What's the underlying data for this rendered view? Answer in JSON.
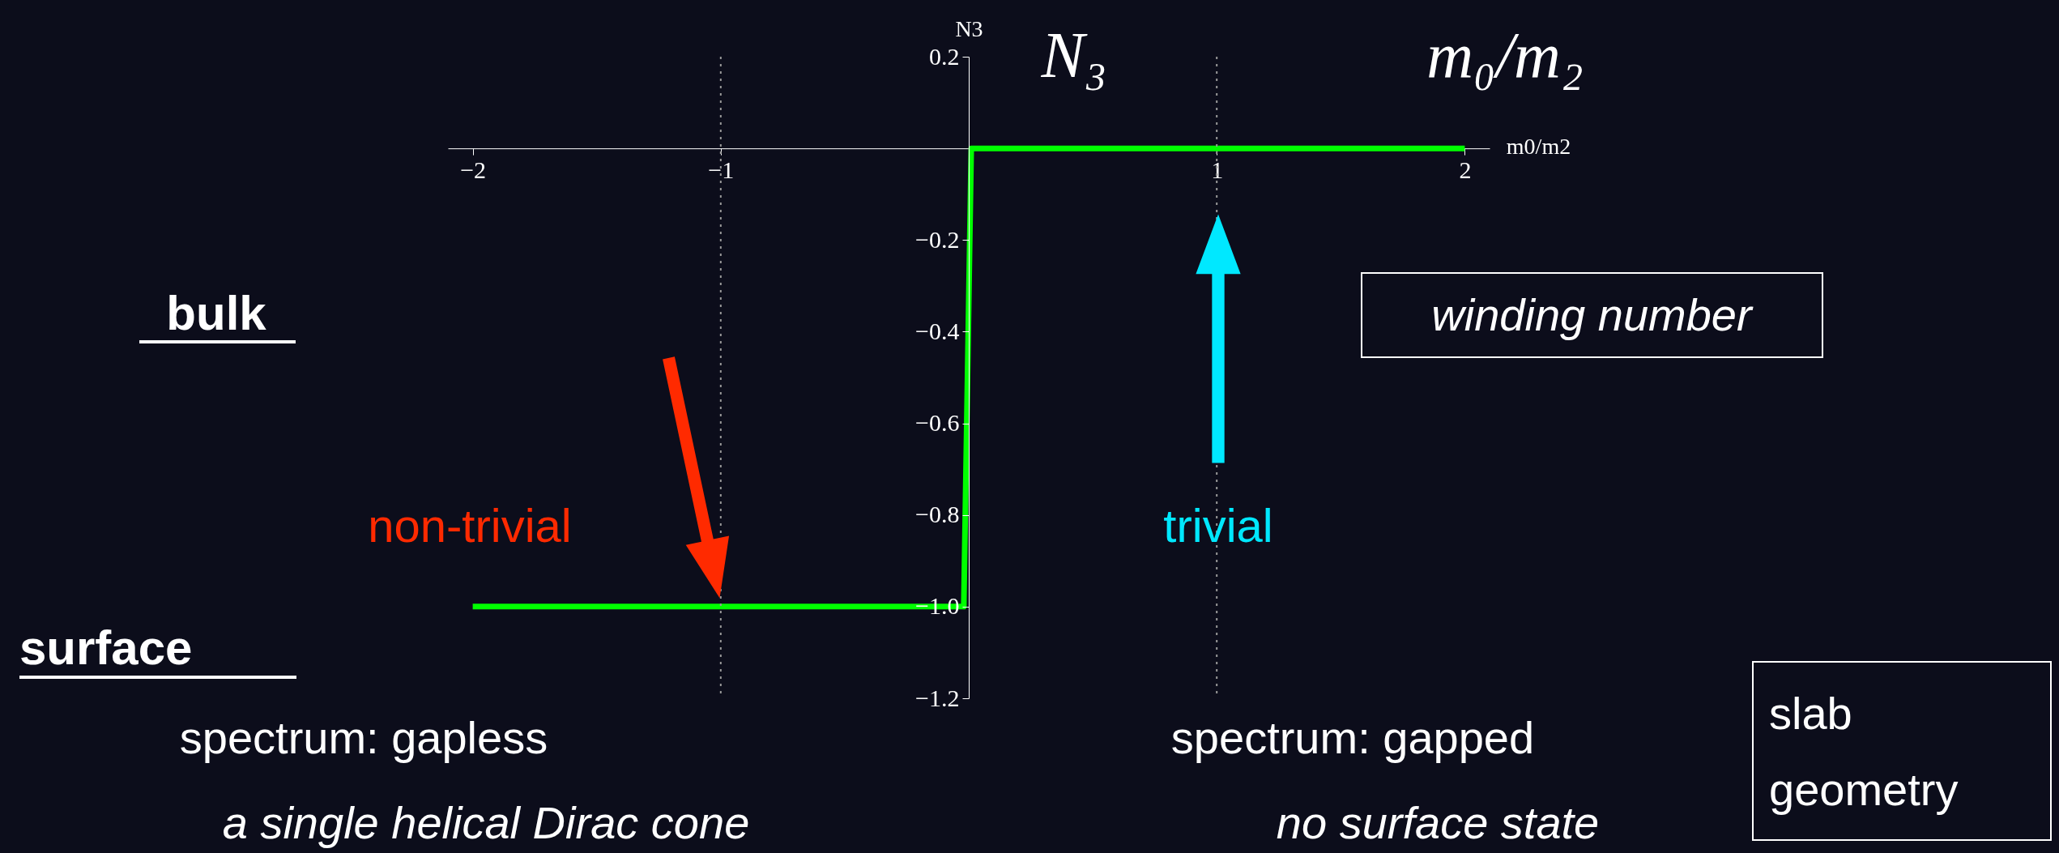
{
  "chart_data": {
    "type": "line",
    "x": [
      -2,
      -0.02,
      0.01,
      2
    ],
    "values": [
      -1,
      -1,
      0,
      0
    ],
    "color": "#00ff00",
    "xlabel": "m0/m2",
    "ylabel": "N3",
    "xlim": [
      -2.1,
      2.1
    ],
    "ylim": [
      -1.2,
      0.2
    ],
    "xticks": [
      -2,
      -1,
      1,
      2
    ],
    "yticks": [
      0.2,
      -0.2,
      -0.4,
      -0.6,
      -0.8,
      {
        "value": -1,
        "label": "−1.0"
      },
      -1.2
    ],
    "ref_lines": [
      {
        "axis": "x",
        "value": -1,
        "color": "#9a9a9a",
        "line_style": "dotted"
      },
      {
        "axis": "x",
        "value": 1,
        "color": "#9a9a9a",
        "line_style": "dotted"
      }
    ],
    "annotations": [
      "N₃",
      "m₀/m₂",
      "bulk",
      "surface",
      "spectrum: gapless",
      "a single helical Dirac cone",
      "spectrum: gapped",
      "no surface state",
      "winding number",
      "slab geometry",
      "non-trivial",
      "trivial"
    ]
  }
}
